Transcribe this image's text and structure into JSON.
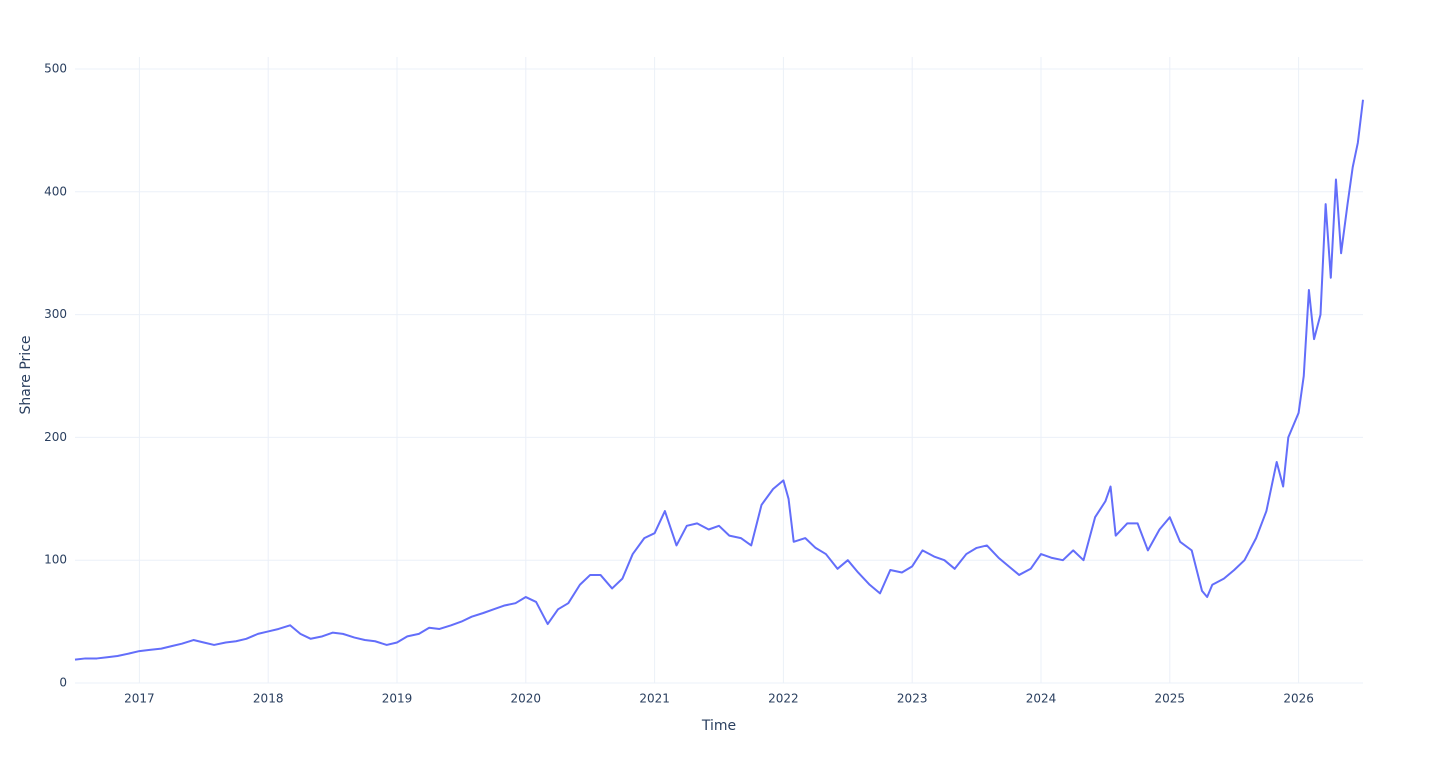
{
  "chart_data": {
    "type": "line",
    "x_label": "Time",
    "y_label": "Share Price",
    "xlim": [
      2016.5,
      2026.5
    ],
    "xticks": [
      2017,
      2018,
      2019,
      2020,
      2021,
      2022,
      2023,
      2024,
      2025,
      2026
    ],
    "ylim": [
      0,
      500
    ],
    "yticks": [
      0,
      100,
      200,
      300,
      400,
      500
    ],
    "grid": true,
    "series": [
      {
        "color": "#636efa",
        "x": [
          2016.5,
          2016.58,
          2016.67,
          2016.75,
          2016.83,
          2016.92,
          2017.0,
          2017.08,
          2017.17,
          2017.25,
          2017.33,
          2017.42,
          2017.5,
          2017.58,
          2017.67,
          2017.75,
          2017.83,
          2017.92,
          2018.0,
          2018.08,
          2018.17,
          2018.25,
          2018.33,
          2018.42,
          2018.5,
          2018.58,
          2018.67,
          2018.75,
          2018.83,
          2018.92,
          2019.0,
          2019.08,
          2019.17,
          2019.25,
          2019.33,
          2019.42,
          2019.5,
          2019.58,
          2019.67,
          2019.75,
          2019.83,
          2019.92,
          2020.0,
          2020.08,
          2020.17,
          2020.25,
          2020.33,
          2020.42,
          2020.5,
          2020.58,
          2020.67,
          2020.75,
          2020.83,
          2020.92,
          2021.0,
          2021.08,
          2021.17,
          2021.25,
          2021.33,
          2021.42,
          2021.5,
          2021.58,
          2021.67,
          2021.75,
          2021.83,
          2021.92,
          2022.0,
          2022.04,
          2022.08,
          2022.17,
          2022.25,
          2022.33,
          2022.42,
          2022.5,
          2022.58,
          2022.67,
          2022.75,
          2022.83,
          2022.92,
          2023.0,
          2023.08,
          2023.17,
          2023.25,
          2023.33,
          2023.42,
          2023.5,
          2023.58,
          2023.67,
          2023.75,
          2023.83,
          2023.92,
          2024.0,
          2024.08,
          2024.17,
          2024.25,
          2024.33,
          2024.42,
          2024.5,
          2024.54,
          2024.58,
          2024.67,
          2024.75,
          2024.83,
          2024.92,
          2025.0,
          2025.08,
          2025.17,
          2025.25,
          2025.29,
          2025.33,
          2025.42,
          2025.5,
          2025.58,
          2025.67,
          2025.75,
          2025.83,
          2025.88,
          2025.92,
          2026.0,
          2026.04,
          2026.08,
          2026.12,
          2026.17,
          2026.21,
          2026.25,
          2026.29,
          2026.33,
          2026.38,
          2026.42,
          2026.46,
          2026.5
        ],
        "values": [
          19,
          20,
          20,
          21,
          22,
          24,
          26,
          27,
          28,
          30,
          32,
          35,
          33,
          31,
          33,
          34,
          36,
          40,
          42,
          44,
          47,
          40,
          36,
          38,
          41,
          40,
          37,
          35,
          34,
          31,
          33,
          38,
          40,
          45,
          44,
          47,
          50,
          54,
          57,
          60,
          63,
          65,
          70,
          66,
          48,
          60,
          65,
          80,
          88,
          88,
          77,
          85,
          105,
          118,
          122,
          140,
          112,
          128,
          130,
          125,
          128,
          120,
          118,
          112,
          145,
          158,
          165,
          150,
          115,
          118,
          110,
          105,
          93,
          100,
          90,
          80,
          73,
          92,
          90,
          95,
          108,
          103,
          100,
          93,
          105,
          110,
          112,
          102,
          95,
          88,
          93,
          105,
          102,
          100,
          108,
          100,
          135,
          148,
          160,
          120,
          130,
          130,
          108,
          125,
          135,
          115,
          108,
          75,
          70,
          80,
          85,
          92,
          100,
          118,
          140,
          180,
          160,
          200,
          220,
          250,
          320,
          280,
          300,
          390,
          330,
          410,
          350,
          390,
          420,
          440,
          475
        ]
      }
    ]
  }
}
